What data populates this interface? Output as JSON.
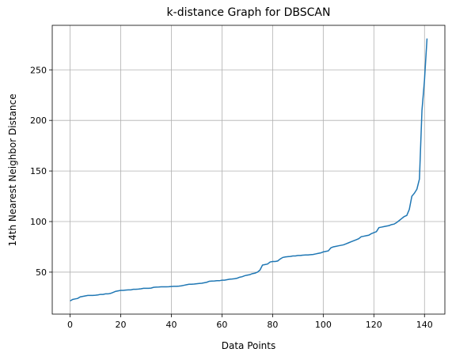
{
  "chart_data": {
    "type": "line",
    "title": "k-distance Graph for DBSCAN",
    "x_label": "Data Points",
    "y_label": "14th Nearest Neighbor Distance",
    "x": [
      0,
      1,
      2,
      3,
      4,
      5,
      6,
      7,
      8,
      9,
      10,
      11,
      12,
      13,
      14,
      15,
      16,
      17,
      18,
      19,
      20,
      21,
      22,
      23,
      24,
      25,
      26,
      27,
      28,
      29,
      30,
      31,
      32,
      33,
      34,
      35,
      36,
      37,
      38,
      39,
      40,
      41,
      42,
      43,
      44,
      45,
      46,
      47,
      48,
      49,
      50,
      51,
      52,
      53,
      54,
      55,
      56,
      57,
      58,
      59,
      60,
      61,
      62,
      63,
      64,
      65,
      66,
      67,
      68,
      69,
      70,
      71,
      72,
      73,
      74,
      75,
      76,
      77,
      78,
      79,
      80,
      81,
      82,
      83,
      84,
      85,
      86,
      87,
      88,
      89,
      90,
      91,
      92,
      93,
      94,
      95,
      96,
      97,
      98,
      99,
      100,
      101,
      102,
      103,
      104,
      105,
      106,
      107,
      108,
      109,
      110,
      111,
      112,
      113,
      114,
      115,
      116,
      117,
      118,
      119,
      120,
      121,
      122,
      123,
      124,
      125,
      126,
      127,
      128,
      129,
      130,
      131,
      132,
      133,
      134,
      135,
      136,
      137,
      138,
      139,
      140,
      141
    ],
    "series": [
      {
        "color": "#1f77b4",
        "values": [
          21.5,
          23,
          23.5,
          24,
          25.5,
          26,
          26.5,
          27,
          27,
          27,
          27.2,
          27.5,
          28,
          28,
          28.5,
          28.5,
          29,
          30,
          31,
          31.5,
          32,
          32,
          32.3,
          32.5,
          32.5,
          33,
          33,
          33.2,
          33.5,
          34,
          34,
          34,
          34.2,
          35,
          35.2,
          35.3,
          35.5,
          35.5,
          35.5,
          35.6,
          35.8,
          36,
          36,
          36.2,
          36.5,
          37,
          37.5,
          38,
          38,
          38.2,
          38.5,
          38.8,
          39,
          39.5,
          40,
          41,
          41.2,
          41.3,
          41.5,
          41.5,
          42,
          42,
          42.5,
          43,
          43.2,
          43.5,
          44,
          45,
          45.5,
          46.5,
          47,
          47.5,
          48.5,
          49,
          50,
          52,
          57,
          57.5,
          58,
          60,
          60.5,
          60.5,
          61,
          63,
          64.5,
          65,
          65.3,
          65.5,
          66,
          66,
          66.5,
          66.5,
          66.8,
          67,
          67,
          67.3,
          67.5,
          68,
          68.5,
          69,
          70,
          70.5,
          71,
          74,
          75,
          75.5,
          76,
          76.5,
          77,
          78,
          79,
          80,
          81,
          82,
          83,
          85,
          85.5,
          86,
          86.5,
          88,
          89,
          90,
          94,
          94.5,
          95,
          95.5,
          96,
          97,
          97.5,
          99,
          101,
          103,
          105,
          106,
          112,
          125,
          128,
          132,
          142,
          210,
          240,
          281
        ]
      }
    ],
    "xlim": [
      -7.05,
      148.05
    ],
    "ylim": [
      8.5,
      294
    ],
    "xticks": [
      0,
      20,
      40,
      60,
      80,
      100,
      120,
      140
    ],
    "yticks": [
      50,
      100,
      150,
      200,
      250
    ],
    "grid": true
  }
}
